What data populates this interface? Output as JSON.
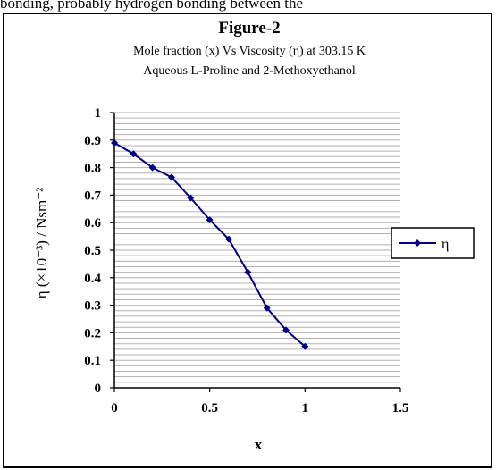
{
  "page": {
    "top_text": "bonding, probably hydrogen bonding between the"
  },
  "chart_data": {
    "type": "line",
    "title": "Figure-2",
    "subtitle_lines": [
      "Mole fraction (x) Vs Viscosity (η) at 303.15 K",
      "Aqueous  L-Proline and 2-Methoxyethanol"
    ],
    "xlabel": "x",
    "ylabel": "η (×10⁻³) / Nsm⁻²",
    "xlim": [
      0,
      1.5
    ],
    "ylim": [
      0,
      1
    ],
    "x_ticks": [
      "0",
      "0.5",
      "1",
      "1.5"
    ],
    "y_ticks": [
      "0",
      "0.1",
      "0.2",
      "0.3",
      "0.4",
      "0.5",
      "0.6",
      "0.7",
      "0.8",
      "0.9",
      "1"
    ],
    "x": [
      0,
      0.1,
      0.2,
      0.3,
      0.4,
      0.5,
      0.6,
      0.7,
      0.8,
      0.9,
      1.0
    ],
    "series": [
      {
        "name": "η",
        "color": "#000080",
        "values": [
          0.89,
          0.85,
          0.8,
          0.765,
          0.69,
          0.61,
          0.54,
          0.42,
          0.29,
          0.21,
          0.15
        ]
      }
    ],
    "grid": "horizontal minor lines, gray",
    "legend_position": "right"
  }
}
